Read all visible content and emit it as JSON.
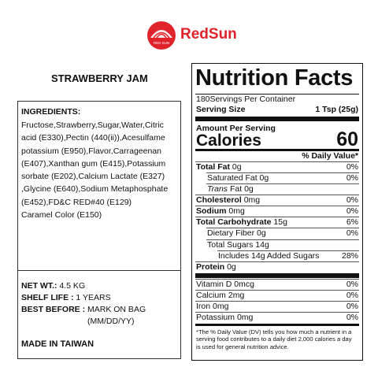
{
  "brand": {
    "name": "RedSun",
    "logo_text": "RED SUN"
  },
  "product_title": "STRAWBERRY JAM",
  "ingredients": {
    "heading": "INGREDIENTS:",
    "lines": [
      "Fructose,Strawberry,Sugar,Water,Citric",
      "acid (E330),Pectin (440(ii)),Acesulfame",
      "potassium (E950),Flavor,Carrageenan",
      "(E407),Xanthan gum (E415),Potassium",
      "sorbate (E202),Calcium Lactate (E327)",
      ",Glycine (E640),Sodium Metaphosphate",
      "(E452),FD&C RED#40 (E129)",
      "Caramel Color (E150)"
    ]
  },
  "net_weight": {
    "label": "NET WT.:",
    "value": "4.5 KG"
  },
  "shelf_life": {
    "label": "SHELF LIFE :",
    "value": "1 YEARS"
  },
  "best_before": {
    "label": "BEST BEFORE :",
    "value_lines": [
      "MARK ON BAG",
      "(MM/DD/YY)"
    ]
  },
  "origin": "MADE IN TAIWAN",
  "nutrition": {
    "title": "Nutrition Facts",
    "servings": "180Servings Per Container",
    "serving_size_label": "Serving Size",
    "serving_size": "1 Tsp (25g)",
    "amount_per_serving": "Amount Per Serving",
    "calories_label": "Calories",
    "calories": "60",
    "dv_header": "% Daily Value*",
    "rows": [
      {
        "name": "Total Fat",
        "amount": "0g",
        "dv": "0%"
      },
      {
        "name": "Saturated Fat",
        "amount": "0g",
        "dv": "0%"
      },
      {
        "name": "Trans",
        "amount": "Fat 0g"
      },
      {
        "name": "Cholesterol",
        "amount": "0mg",
        "dv": "0%"
      },
      {
        "name": "Sodium",
        "amount": "0mg",
        "dv": "0%"
      },
      {
        "name": "Total Carbohydrate",
        "amount": "15g",
        "dv": "6%"
      },
      {
        "name": "Dietary Fiber",
        "amount": "0g",
        "dv": "0%"
      },
      {
        "name": "Total Sugars",
        "amount": "14g"
      },
      {
        "name": "Includes 14g Added Sugars",
        "dv": "28%"
      },
      {
        "name": "Protein",
        "amount": "0g"
      }
    ],
    "vitamins": [
      {
        "name": "Vitamin D",
        "amount": "0mcg",
        "dv": "0%"
      },
      {
        "name": "Calcium",
        "amount": "2mg",
        "dv": "0%"
      },
      {
        "name": "Iron",
        "amount": "0mg",
        "dv": "0%"
      },
      {
        "name": "Potassium",
        "amount": "0mg",
        "dv": "0%"
      }
    ],
    "footnote": "*The % Daily Value (DV) tells you how much a nutrient in a serving food contributes to a daily diet 2,000 calories a day is used for general nutrition advice."
  }
}
